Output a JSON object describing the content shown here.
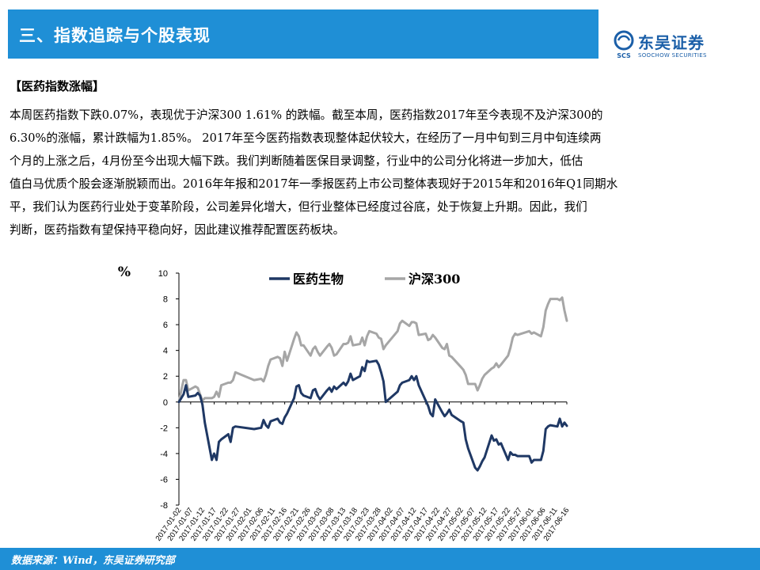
{
  "header": {
    "title": "三、指数追踪与个股表现",
    "logo_name": "东吴证券",
    "logo_sub": "SOOCHOW SECURITIES",
    "logo_glyph": "SCS"
  },
  "section": {
    "heading": "【医药指数涨幅】",
    "lines": [
      "本周医药指数下跌0.07%，表现优于沪深300 1.61% 的跌幅。截至本周，医药指数2017年至今表现不及沪深300的",
      "6.30%的涨幅，累计跌幅为1.85%。 2017年至今医药指数表现整体起伏较大，在经历了一月中旬到三月中旬连续两",
      "个月的上涨之后，4月份至今出现大幅下跌。我们判断随着医保目录调整，行业中的公司分化将进一步加大，低估",
      "值白马优质个股会逐渐脱颖而出。2016年年报和2017年一季报医药上市公司整体表现好于2015年和2016年Q1同期水",
      "平，我们认为医药行业处于变革阶段，公司差异化增大，但行业整体已经度过谷底，处于恢复上升期。因此，我们",
      "判断，医药指数有望保持平稳向好，因此建议推荐配置医药板块。"
    ]
  },
  "chart_data": {
    "type": "line",
    "ylabel": "%",
    "ylim": [
      -8,
      10
    ],
    "yticks": [
      -8,
      -6,
      -4,
      -2,
      0,
      2,
      4,
      6,
      8,
      10
    ],
    "legend_position": "top",
    "x_tick_labels": [
      "2017-01-02",
      "2017-01-07",
      "2017-01-12",
      "2017-01-17",
      "2017-01-22",
      "2017-01-27",
      "2017-02-01",
      "2017-02-06",
      "2017-02-11",
      "2017-02-16",
      "2017-02-21",
      "2017-02-26",
      "2017-03-03",
      "2017-03-08",
      "2017-03-13",
      "2017-03-18",
      "2017-03-23",
      "2017-03-28",
      "2017-04-02",
      "2017-04-07",
      "2017-04-12",
      "2017-04-17",
      "2017-04-22",
      "2017-04-27",
      "2017-05-02",
      "2017-05-07",
      "2017-05-12",
      "2017-05-17",
      "2017-05-22",
      "2017-05-27",
      "2017-06-01",
      "2017-06-06",
      "2017-06-11",
      "2017-06-16"
    ],
    "x_range": [
      "2017-01-02",
      "2017-06-16"
    ],
    "series": [
      {
        "name": "医药生物",
        "color": "#1f3864",
        "points": [
          [
            "2017-01-02",
            0.0
          ],
          [
            "2017-01-03",
            0.3
          ],
          [
            "2017-01-04",
            0.6
          ],
          [
            "2017-01-05",
            1.3
          ],
          [
            "2017-01-06",
            0.4
          ],
          [
            "2017-01-09",
            0.5
          ],
          [
            "2017-01-10",
            0.7
          ],
          [
            "2017-01-11",
            0.5
          ],
          [
            "2017-01-12",
            -0.2
          ],
          [
            "2017-01-13",
            -1.6
          ],
          [
            "2017-01-16",
            -4.5
          ],
          [
            "2017-01-17",
            -4.0
          ],
          [
            "2017-01-18",
            -4.5
          ],
          [
            "2017-01-19",
            -3.1
          ],
          [
            "2017-01-20",
            -2.9
          ],
          [
            "2017-01-23",
            -2.5
          ],
          [
            "2017-01-24",
            -3.1
          ],
          [
            "2017-01-25",
            -2.0
          ],
          [
            "2017-01-26",
            -1.9
          ],
          [
            "2017-02-03",
            -2.1
          ],
          [
            "2017-02-06",
            -2.0
          ],
          [
            "2017-02-07",
            -1.4
          ],
          [
            "2017-02-08",
            -1.8
          ],
          [
            "2017-02-09",
            -2.0
          ],
          [
            "2017-02-10",
            -1.5
          ],
          [
            "2017-02-13",
            -1.3
          ],
          [
            "2017-02-14",
            -1.6
          ],
          [
            "2017-02-15",
            -1.7
          ],
          [
            "2017-02-16",
            -1.2
          ],
          [
            "2017-02-17",
            -0.9
          ],
          [
            "2017-02-20",
            0.3
          ],
          [
            "2017-02-21",
            1.2
          ],
          [
            "2017-02-22",
            1.3
          ],
          [
            "2017-02-23",
            0.7
          ],
          [
            "2017-02-24",
            0.5
          ],
          [
            "2017-02-27",
            0.3
          ],
          [
            "2017-02-28",
            0.9
          ],
          [
            "2017-03-01",
            1.0
          ],
          [
            "2017-03-02",
            0.5
          ],
          [
            "2017-03-03",
            0.2
          ],
          [
            "2017-03-06",
            0.9
          ],
          [
            "2017-03-07",
            1.1
          ],
          [
            "2017-03-08",
            0.8
          ],
          [
            "2017-03-09",
            1.2
          ],
          [
            "2017-03-10",
            1.0
          ],
          [
            "2017-03-13",
            1.5
          ],
          [
            "2017-03-14",
            1.3
          ],
          [
            "2017-03-15",
            1.6
          ],
          [
            "2017-03-16",
            2.2
          ],
          [
            "2017-03-17",
            1.7
          ],
          [
            "2017-03-20",
            2.0
          ],
          [
            "2017-03-21",
            2.7
          ],
          [
            "2017-03-22",
            2.4
          ],
          [
            "2017-03-23",
            3.2
          ],
          [
            "2017-03-24",
            3.1
          ],
          [
            "2017-03-27",
            3.2
          ],
          [
            "2017-03-28",
            2.9
          ],
          [
            "2017-03-29",
            2.3
          ],
          [
            "2017-03-30",
            1.6
          ],
          [
            "2017-03-31",
            0.0
          ],
          [
            "2017-04-05",
            0.8
          ],
          [
            "2017-04-06",
            1.3
          ],
          [
            "2017-04-07",
            1.5
          ],
          [
            "2017-04-10",
            1.7
          ],
          [
            "2017-04-11",
            2.0
          ],
          [
            "2017-04-12",
            1.7
          ],
          [
            "2017-04-13",
            2.0
          ],
          [
            "2017-04-14",
            1.3
          ],
          [
            "2017-04-17",
            0.1
          ],
          [
            "2017-04-18",
            -0.3
          ],
          [
            "2017-04-19",
            -0.9
          ],
          [
            "2017-04-20",
            -1.1
          ],
          [
            "2017-04-21",
            0.2
          ],
          [
            "2017-04-24",
            -0.8
          ],
          [
            "2017-04-25",
            -1.1
          ],
          [
            "2017-04-26",
            -0.9
          ],
          [
            "2017-04-27",
            -0.6
          ],
          [
            "2017-04-28",
            -1.0
          ],
          [
            "2017-05-02",
            -1.5
          ],
          [
            "2017-05-03",
            -1.6
          ],
          [
            "2017-05-04",
            -2.9
          ],
          [
            "2017-05-05",
            -3.6
          ],
          [
            "2017-05-08",
            -5.1
          ],
          [
            "2017-05-09",
            -5.3
          ],
          [
            "2017-05-10",
            -5.0
          ],
          [
            "2017-05-11",
            -4.6
          ],
          [
            "2017-05-12",
            -4.3
          ],
          [
            "2017-05-15",
            -2.6
          ],
          [
            "2017-05-16",
            -3.0
          ],
          [
            "2017-05-17",
            -2.9
          ],
          [
            "2017-05-18",
            -3.3
          ],
          [
            "2017-05-19",
            -3.2
          ],
          [
            "2017-05-22",
            -4.5
          ],
          [
            "2017-05-23",
            -3.9
          ],
          [
            "2017-05-24",
            -4.1
          ],
          [
            "2017-05-25",
            -4.1
          ],
          [
            "2017-05-26",
            -4.2
          ],
          [
            "2017-05-31",
            -4.2
          ],
          [
            "2017-06-01",
            -4.7
          ],
          [
            "2017-06-02",
            -4.5
          ],
          [
            "2017-06-05",
            -4.5
          ],
          [
            "2017-06-06",
            -3.8
          ],
          [
            "2017-06-07",
            -2.1
          ],
          [
            "2017-06-08",
            -1.9
          ],
          [
            "2017-06-09",
            -1.8
          ],
          [
            "2017-06-12",
            -1.9
          ],
          [
            "2017-06-13",
            -1.3
          ],
          [
            "2017-06-14",
            -1.9
          ],
          [
            "2017-06-15",
            -1.6
          ],
          [
            "2017-06-16",
            -1.85
          ]
        ]
      },
      {
        "name": "沪深300",
        "color": "#a6a6a6",
        "points": [
          [
            "2017-01-02",
            0.0
          ],
          [
            "2017-01-03",
            0.9
          ],
          [
            "2017-01-04",
            1.7
          ],
          [
            "2017-01-05",
            1.7
          ],
          [
            "2017-01-06",
            0.9
          ],
          [
            "2017-01-09",
            1.2
          ],
          [
            "2017-01-10",
            1.1
          ],
          [
            "2017-01-11",
            0.6
          ],
          [
            "2017-01-12",
            0.1
          ],
          [
            "2017-01-13",
            0.3
          ],
          [
            "2017-01-16",
            0.3
          ],
          [
            "2017-01-17",
            0.4
          ],
          [
            "2017-01-18",
            0.8
          ],
          [
            "2017-01-19",
            0.4
          ],
          [
            "2017-01-20",
            1.3
          ],
          [
            "2017-01-23",
            1.5
          ],
          [
            "2017-01-24",
            1.5
          ],
          [
            "2017-01-25",
            1.7
          ],
          [
            "2017-01-26",
            2.3
          ],
          [
            "2017-02-03",
            1.7
          ],
          [
            "2017-02-06",
            1.8
          ],
          [
            "2017-02-07",
            1.6
          ],
          [
            "2017-02-08",
            2.1
          ],
          [
            "2017-02-09",
            2.8
          ],
          [
            "2017-02-10",
            3.3
          ],
          [
            "2017-02-13",
            3.5
          ],
          [
            "2017-02-14",
            3.4
          ],
          [
            "2017-02-15",
            2.8
          ],
          [
            "2017-02-16",
            3.9
          ],
          [
            "2017-02-17",
            3.2
          ],
          [
            "2017-02-20",
            4.9
          ],
          [
            "2017-02-21",
            5.4
          ],
          [
            "2017-02-22",
            5.1
          ],
          [
            "2017-02-23",
            4.4
          ],
          [
            "2017-02-24",
            4.4
          ],
          [
            "2017-02-27",
            3.6
          ],
          [
            "2017-02-28",
            4.1
          ],
          [
            "2017-03-01",
            4.3
          ],
          [
            "2017-03-02",
            3.9
          ],
          [
            "2017-03-03",
            3.6
          ],
          [
            "2017-03-06",
            4.3
          ],
          [
            "2017-03-07",
            4.5
          ],
          [
            "2017-03-08",
            4.2
          ],
          [
            "2017-03-09",
            3.6
          ],
          [
            "2017-03-10",
            3.7
          ],
          [
            "2017-03-13",
            4.5
          ],
          [
            "2017-03-14",
            4.5
          ],
          [
            "2017-03-15",
            4.6
          ],
          [
            "2017-03-16",
            5.1
          ],
          [
            "2017-03-17",
            4.4
          ],
          [
            "2017-03-20",
            4.5
          ],
          [
            "2017-03-21",
            5.0
          ],
          [
            "2017-03-22",
            4.4
          ],
          [
            "2017-03-23",
            5.1
          ],
          [
            "2017-03-24",
            5.5
          ],
          [
            "2017-03-27",
            5.3
          ],
          [
            "2017-03-28",
            5.0
          ],
          [
            "2017-03-29",
            4.9
          ],
          [
            "2017-03-30",
            4.1
          ],
          [
            "2017-03-31",
            4.4
          ],
          [
            "2017-04-05",
            5.5
          ],
          [
            "2017-04-06",
            6.1
          ],
          [
            "2017-04-07",
            6.3
          ],
          [
            "2017-04-10",
            5.9
          ],
          [
            "2017-04-11",
            6.2
          ],
          [
            "2017-04-12",
            6.2
          ],
          [
            "2017-04-13",
            6.1
          ],
          [
            "2017-04-14",
            5.2
          ],
          [
            "2017-04-17",
            5.3
          ],
          [
            "2017-04-18",
            4.8
          ],
          [
            "2017-04-19",
            4.9
          ],
          [
            "2017-04-20",
            5.2
          ],
          [
            "2017-04-21",
            5.0
          ],
          [
            "2017-04-24",
            4.2
          ],
          [
            "2017-04-25",
            4.1
          ],
          [
            "2017-04-26",
            4.5
          ],
          [
            "2017-04-27",
            3.6
          ],
          [
            "2017-04-28",
            3.5
          ],
          [
            "2017-05-02",
            2.7
          ],
          [
            "2017-05-03",
            2.5
          ],
          [
            "2017-05-04",
            2.1
          ],
          [
            "2017-05-05",
            1.4
          ],
          [
            "2017-05-08",
            1.4
          ],
          [
            "2017-05-09",
            0.9
          ],
          [
            "2017-05-10",
            1.3
          ],
          [
            "2017-05-11",
            1.8
          ],
          [
            "2017-05-12",
            2.1
          ],
          [
            "2017-05-15",
            2.6
          ],
          [
            "2017-05-16",
            2.7
          ],
          [
            "2017-05-17",
            3.0
          ],
          [
            "2017-05-18",
            2.7
          ],
          [
            "2017-05-19",
            2.9
          ],
          [
            "2017-05-22",
            3.6
          ],
          [
            "2017-05-23",
            4.2
          ],
          [
            "2017-05-24",
            5.0
          ],
          [
            "2017-05-25",
            5.3
          ],
          [
            "2017-05-26",
            5.2
          ],
          [
            "2017-05-31",
            5.5
          ],
          [
            "2017-06-01",
            5.3
          ],
          [
            "2017-06-02",
            5.4
          ],
          [
            "2017-06-05",
            5.1
          ],
          [
            "2017-06-06",
            5.8
          ],
          [
            "2017-06-07",
            7.1
          ],
          [
            "2017-06-08",
            7.6
          ],
          [
            "2017-06-09",
            8.0
          ],
          [
            "2017-06-12",
            8.0
          ],
          [
            "2017-06-13",
            7.9
          ],
          [
            "2017-06-14",
            8.1
          ],
          [
            "2017-06-15",
            7.1
          ],
          [
            "2017-06-16",
            6.3
          ]
        ]
      }
    ]
  },
  "footer": {
    "source": "数据来源：Wind，东吴证券研究部"
  }
}
